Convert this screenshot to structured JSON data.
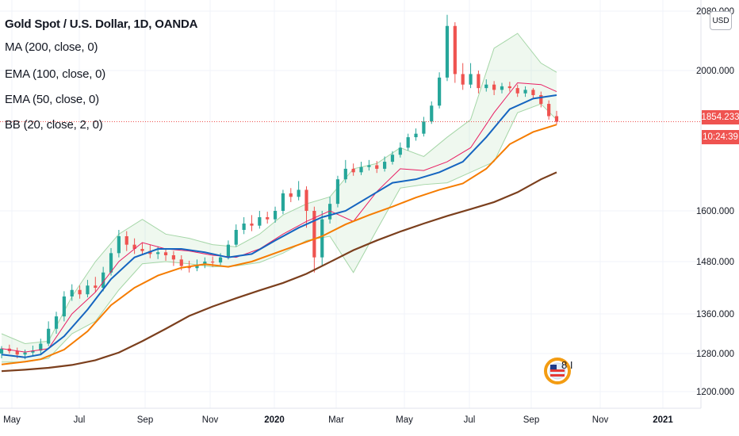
{
  "legend": {
    "title": "Gold Spot / U.S. Dollar, 1D, OANDA",
    "ma200": "MA (200, close, 0)",
    "ema100": "EMA (100, close, 0)",
    "ema50": "EMA (50, close, 0)",
    "bb": "BB (20, close, 2, 0)"
  },
  "currency_button": "USD",
  "last_price_label": "1854.233",
  "countdown_label": "10:24:39",
  "watermark_text": "8 I",
  "colors": {
    "up": "#26a69a",
    "down": "#ef5350",
    "ma200": "#7b3f1d",
    "ema100": "#f57c00",
    "ema50": "#1565c0",
    "bb_basis": "#e91e63",
    "bb_band": "#a5d6a7",
    "bb_fill": "rgba(165,214,167,0.18)",
    "price_line": "#ef5350"
  },
  "chart_data": {
    "type": "line",
    "title": "Gold Spot / U.S. Dollar, 1D, OANDA",
    "x_tick_labels": [
      "May",
      "Jul",
      "Sep",
      "Nov",
      "2020",
      "Mar",
      "May",
      "Jul",
      "Sep",
      "Nov",
      "2021"
    ],
    "y_tick_labels": [
      "1200.000",
      "1280.000",
      "1360.000",
      "1480.000",
      "1600.000",
      "2000.000",
      "2080.000"
    ],
    "ylim": [
      1180,
      2100
    ],
    "last_price": 1854.233,
    "grid": true,
    "series": [
      {
        "name": "MA (200, close, 0)",
        "key": "ma200",
        "points": [
          [
            0,
            1243
          ],
          [
            3,
            1246
          ],
          [
            6,
            1250
          ],
          [
            9,
            1256
          ],
          [
            12,
            1266
          ],
          [
            15,
            1282
          ],
          [
            18,
            1305
          ],
          [
            21,
            1330
          ],
          [
            24,
            1356
          ],
          [
            27,
            1377
          ],
          [
            30,
            1396
          ],
          [
            33,
            1414
          ],
          [
            36,
            1431
          ],
          [
            39,
            1452
          ],
          [
            42,
            1479
          ],
          [
            45,
            1507
          ],
          [
            48,
            1530
          ],
          [
            51,
            1551
          ],
          [
            54,
            1570
          ],
          [
            57,
            1588
          ],
          [
            60,
            1605
          ],
          [
            63,
            1625
          ],
          [
            66,
            1653
          ],
          [
            69,
            1690
          ],
          [
            71,
            1710
          ]
        ]
      },
      {
        "name": "EMA (100, close, 0)",
        "key": "ema100",
        "points": [
          [
            0,
            1257
          ],
          [
            3,
            1263
          ],
          [
            5,
            1268
          ],
          [
            8,
            1288
          ],
          [
            11,
            1325
          ],
          [
            14,
            1380
          ],
          [
            17,
            1420
          ],
          [
            20,
            1448
          ],
          [
            23,
            1466
          ],
          [
            26,
            1474
          ],
          [
            29,
            1468
          ],
          [
            32,
            1480
          ],
          [
            35,
            1500
          ],
          [
            38,
            1520
          ],
          [
            41,
            1540
          ],
          [
            44,
            1568
          ],
          [
            47,
            1590
          ],
          [
            50,
            1612
          ],
          [
            53,
            1638
          ],
          [
            56,
            1660
          ],
          [
            59,
            1678
          ],
          [
            62,
            1720
          ],
          [
            65,
            1790
          ],
          [
            68,
            1825
          ],
          [
            71,
            1846
          ]
        ]
      },
      {
        "name": "EMA (50, close, 0)",
        "key": "ema50",
        "points": [
          [
            0,
            1278
          ],
          [
            3,
            1272
          ],
          [
            5,
            1278
          ],
          [
            8,
            1315
          ],
          [
            11,
            1370
          ],
          [
            14,
            1440
          ],
          [
            17,
            1490
          ],
          [
            20,
            1510
          ],
          [
            23,
            1510
          ],
          [
            26,
            1502
          ],
          [
            29,
            1490
          ],
          [
            32,
            1498
          ],
          [
            35,
            1530
          ],
          [
            38,
            1560
          ],
          [
            41,
            1585
          ],
          [
            44,
            1600
          ],
          [
            47,
            1640
          ],
          [
            50,
            1680
          ],
          [
            53,
            1690
          ],
          [
            56,
            1710
          ],
          [
            59,
            1740
          ],
          [
            62,
            1810
          ],
          [
            65,
            1890
          ],
          [
            68,
            1920
          ],
          [
            71,
            1930
          ]
        ]
      },
      {
        "name": "BB (20, close, 2, 0)",
        "key": "bb_basis",
        "points": [
          [
            0,
            1290
          ],
          [
            3,
            1283
          ],
          [
            6,
            1290
          ],
          [
            9,
            1360
          ],
          [
            12,
            1410
          ],
          [
            15,
            1480
          ],
          [
            18,
            1525
          ],
          [
            21,
            1510
          ],
          [
            24,
            1505
          ],
          [
            27,
            1495
          ],
          [
            30,
            1490
          ],
          [
            33,
            1510
          ],
          [
            36,
            1545
          ],
          [
            39,
            1575
          ],
          [
            42,
            1600
          ],
          [
            45,
            1575
          ],
          [
            48,
            1655
          ],
          [
            51,
            1720
          ],
          [
            54,
            1715
          ],
          [
            57,
            1740
          ],
          [
            60,
            1780
          ],
          [
            63,
            1880
          ],
          [
            66,
            1965
          ],
          [
            69,
            1960
          ],
          [
            71,
            1940
          ]
        ]
      },
      {
        "name": "BB upper",
        "key": "bb_upper",
        "points": [
          [
            0,
            1320
          ],
          [
            3,
            1300
          ],
          [
            6,
            1305
          ],
          [
            9,
            1400
          ],
          [
            12,
            1480
          ],
          [
            15,
            1545
          ],
          [
            18,
            1580
          ],
          [
            21,
            1545
          ],
          [
            24,
            1535
          ],
          [
            27,
            1520
          ],
          [
            30,
            1515
          ],
          [
            33,
            1545
          ],
          [
            36,
            1590
          ],
          [
            39,
            1620
          ],
          [
            42,
            1640
          ],
          [
            45,
            1720
          ],
          [
            48,
            1735
          ],
          [
            51,
            1780
          ],
          [
            54,
            1755
          ],
          [
            57,
            1810
          ],
          [
            60,
            1860
          ],
          [
            63,
            2030
          ],
          [
            66,
            2050
          ],
          [
            69,
            2010
          ],
          [
            71,
            1995
          ]
        ]
      },
      {
        "name": "BB lower",
        "key": "bb_lower",
        "points": [
          [
            0,
            1262
          ],
          [
            3,
            1262
          ],
          [
            6,
            1270
          ],
          [
            9,
            1320
          ],
          [
            12,
            1345
          ],
          [
            15,
            1415
          ],
          [
            18,
            1475
          ],
          [
            21,
            1480
          ],
          [
            24,
            1475
          ],
          [
            27,
            1468
          ],
          [
            30,
            1470
          ],
          [
            33,
            1478
          ],
          [
            36,
            1500
          ],
          [
            39,
            1530
          ],
          [
            42,
            1540
          ],
          [
            45,
            1455
          ],
          [
            48,
            1555
          ],
          [
            51,
            1665
          ],
          [
            54,
            1675
          ],
          [
            57,
            1680
          ],
          [
            60,
            1710
          ],
          [
            63,
            1740
          ],
          [
            66,
            1880
          ],
          [
            69,
            1905
          ],
          [
            71,
            1860
          ]
        ]
      }
    ],
    "candles": [
      [
        0,
        1280,
        1290,
        1270,
        1295
      ],
      [
        1,
        1290,
        1285,
        1280,
        1298
      ],
      [
        2,
        1285,
        1278,
        1270,
        1292
      ],
      [
        3,
        1278,
        1282,
        1268,
        1288
      ],
      [
        4,
        1282,
        1286,
        1276,
        1296
      ],
      [
        5,
        1286,
        1300,
        1280,
        1310
      ],
      [
        6,
        1300,
        1330,
        1295,
        1345
      ],
      [
        7,
        1330,
        1355,
        1320,
        1365
      ],
      [
        8,
        1355,
        1400,
        1345,
        1412
      ],
      [
        9,
        1400,
        1415,
        1390,
        1428
      ],
      [
        10,
        1415,
        1405,
        1395,
        1425
      ],
      [
        11,
        1405,
        1425,
        1398,
        1438
      ],
      [
        12,
        1425,
        1420,
        1410,
        1445
      ],
      [
        13,
        1420,
        1455,
        1412,
        1468
      ],
      [
        14,
        1455,
        1500,
        1448,
        1512
      ],
      [
        15,
        1500,
        1540,
        1490,
        1555
      ],
      [
        16,
        1540,
        1520,
        1505,
        1552
      ],
      [
        17,
        1520,
        1510,
        1498,
        1535
      ],
      [
        18,
        1510,
        1505,
        1495,
        1525
      ],
      [
        19,
        1505,
        1498,
        1488,
        1520
      ],
      [
        20,
        1498,
        1502,
        1486,
        1516
      ],
      [
        21,
        1502,
        1495,
        1482,
        1512
      ],
      [
        22,
        1495,
        1485,
        1470,
        1505
      ],
      [
        23,
        1485,
        1470,
        1460,
        1495
      ],
      [
        24,
        1470,
        1465,
        1455,
        1482
      ],
      [
        25,
        1465,
        1472,
        1458,
        1485
      ],
      [
        26,
        1472,
        1480,
        1465,
        1490
      ],
      [
        27,
        1480,
        1478,
        1468,
        1492
      ],
      [
        28,
        1478,
        1490,
        1472,
        1500
      ],
      [
        29,
        1490,
        1520,
        1485,
        1530
      ],
      [
        30,
        1520,
        1555,
        1515,
        1568
      ],
      [
        31,
        1555,
        1570,
        1545,
        1585
      ],
      [
        32,
        1570,
        1565,
        1552,
        1590
      ],
      [
        33,
        1565,
        1585,
        1558,
        1600
      ],
      [
        34,
        1585,
        1580,
        1570,
        1598
      ],
      [
        35,
        1580,
        1600,
        1572,
        1612
      ],
      [
        36,
        1600,
        1650,
        1592,
        1660
      ],
      [
        37,
        1650,
        1640,
        1625,
        1665
      ],
      [
        38,
        1640,
        1660,
        1630,
        1685
      ],
      [
        39,
        1660,
        1600,
        1560,
        1670
      ],
      [
        40,
        1600,
        1490,
        1455,
        1612
      ],
      [
        41,
        1490,
        1580,
        1470,
        1600
      ],
      [
        42,
        1580,
        1620,
        1570,
        1640
      ],
      [
        43,
        1620,
        1690,
        1610,
        1700
      ],
      [
        44,
        1690,
        1720,
        1680,
        1745
      ],
      [
        45,
        1720,
        1710,
        1700,
        1735
      ],
      [
        46,
        1710,
        1725,
        1702,
        1740
      ],
      [
        47,
        1725,
        1730,
        1715,
        1745
      ],
      [
        48,
        1730,
        1720,
        1708,
        1742
      ],
      [
        49,
        1720,
        1740,
        1712,
        1755
      ],
      [
        50,
        1740,
        1760,
        1732,
        1770
      ],
      [
        51,
        1760,
        1780,
        1752,
        1795
      ],
      [
        52,
        1780,
        1810,
        1772,
        1820
      ],
      [
        53,
        1810,
        1820,
        1800,
        1835
      ],
      [
        54,
        1820,
        1855,
        1812,
        1868
      ],
      [
        55,
        1855,
        1900,
        1848,
        1912
      ],
      [
        56,
        1900,
        1980,
        1892,
        1995
      ],
      [
        57,
        1980,
        2060,
        1970,
        2075
      ],
      [
        58,
        2060,
        1990,
        1965,
        2065
      ],
      [
        59,
        1990,
        1960,
        1945,
        2010
      ],
      [
        60,
        1960,
        1990,
        1950,
        2010
      ],
      [
        61,
        1990,
        1950,
        1935,
        2000
      ],
      [
        62,
        1950,
        1960,
        1940,
        1975
      ],
      [
        63,
        1960,
        1945,
        1930,
        1970
      ],
      [
        64,
        1945,
        1955,
        1935,
        1965
      ],
      [
        65,
        1955,
        1950,
        1940,
        1968
      ],
      [
        66,
        1950,
        1935,
        1925,
        1960
      ],
      [
        67,
        1935,
        1945,
        1925,
        1955
      ],
      [
        68,
        1945,
        1930,
        1918,
        1950
      ],
      [
        69,
        1930,
        1905,
        1895,
        1940
      ],
      [
        70,
        1905,
        1870,
        1860,
        1915
      ],
      [
        71,
        1870,
        1854,
        1846,
        1885
      ]
    ]
  }
}
